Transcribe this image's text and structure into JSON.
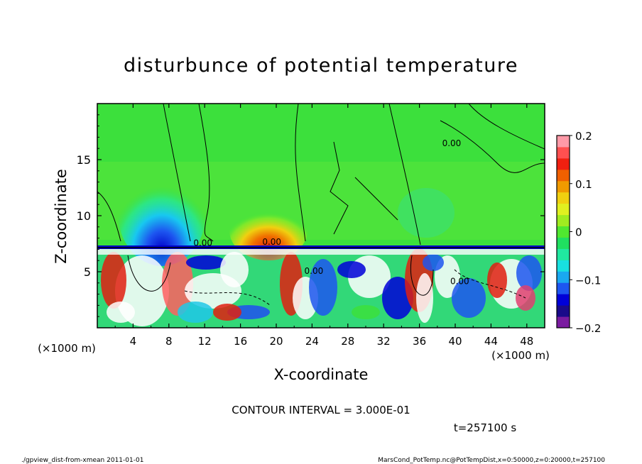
{
  "chart_data": {
    "type": "heatmap",
    "title": "disturbunce of potential temperature",
    "xlabel": "X-coordinate",
    "ylabel": "Z-coordinate",
    "x_unit_label": "(×1000 m)",
    "z_unit_label": "(×1000 m)",
    "xlim": [
      0,
      50
    ],
    "ylim": [
      0,
      20
    ],
    "x_ticks": [
      4,
      8,
      12,
      16,
      20,
      24,
      28,
      32,
      36,
      40,
      44,
      48
    ],
    "y_ticks": [
      5,
      10,
      15
    ],
    "colorbar": {
      "range": [
        -0.2,
        0.2
      ],
      "ticks": [
        {
          "value": 0.2,
          "label": "0.2"
        },
        {
          "value": 0.1,
          "label": "0.1"
        },
        {
          "value": 0,
          "label": "0"
        },
        {
          "value": -0.1,
          "label": "−0.1"
        },
        {
          "value": -0.2,
          "label": "−0.2"
        }
      ],
      "colors": [
        "#7a1ba0",
        "#1a0a8a",
        "#0000d8",
        "#1d56f0",
        "#1aa8f0",
        "#18e0e0",
        "#20e8a0",
        "#20e060",
        "#50e830",
        "#a0ec20",
        "#e0f020",
        "#f0d010",
        "#f09a00",
        "#f06000",
        "#f02010",
        "#ff5050",
        "#ff9aa8"
      ]
    },
    "contour_interval": "CONTOUR INTERVAL = 3.000E-01",
    "contour_labels": [
      {
        "text": "0.00",
        "x": 19.5,
        "z": 7.4
      },
      {
        "text": "0.00",
        "x": 11.8,
        "z": 7.3
      },
      {
        "text": "0.00",
        "x": 39.6,
        "z": 16.2
      },
      {
        "text": "0.00",
        "x": 24.2,
        "z": 4.8
      },
      {
        "text": "0.00",
        "x": 40.5,
        "z": 3.9
      }
    ],
    "time": "t=257100 s"
  },
  "footer": {
    "left": "./gpview_dist-from-xmean  2011-01-01",
    "right": "MarsCond_PotTemp.nc@PotTempDist,x=0:50000,z=0:20000,t=257100"
  }
}
